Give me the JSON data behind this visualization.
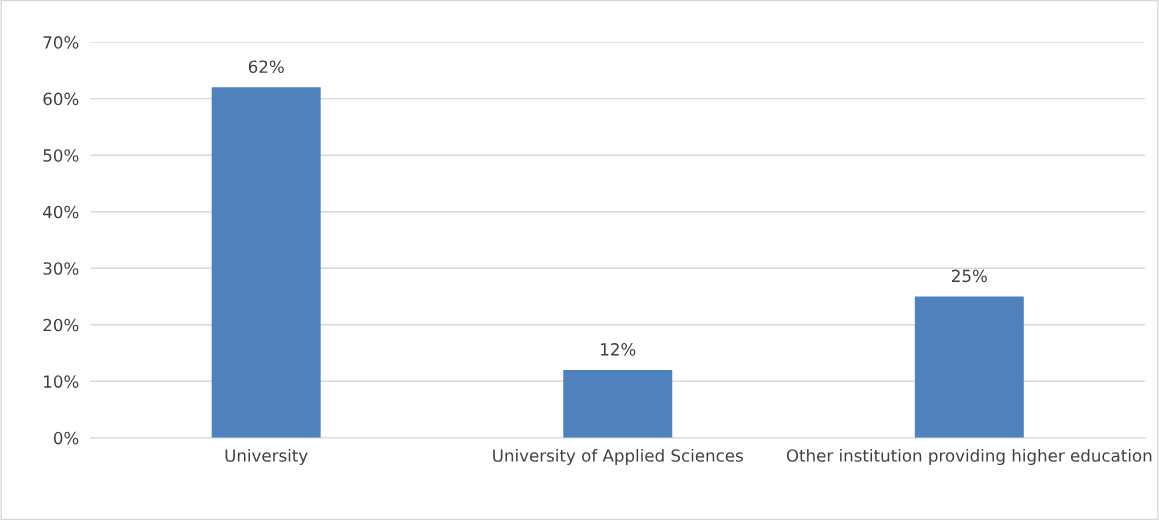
{
  "chart_data": {
    "type": "bar",
    "categories": [
      "University",
      "University of Applied Sciences",
      "Other institution providing higher education"
    ],
    "values": [
      62,
      12,
      25
    ],
    "value_labels": [
      "62%",
      "12%",
      "25%"
    ],
    "color": "#4f81bd",
    "ylim": [
      0,
      70
    ],
    "yticks": [
      {
        "value": 0,
        "label": "0%"
      },
      {
        "value": 10,
        "label": "10%"
      },
      {
        "value": 20,
        "label": "20%"
      },
      {
        "value": 30,
        "label": "30%"
      },
      {
        "value": 40,
        "label": "40%"
      },
      {
        "value": 50,
        "label": "50%"
      },
      {
        "value": 60,
        "label": "60%"
      },
      {
        "value": 70,
        "label": "70%"
      }
    ],
    "grid": "y",
    "legend": false
  }
}
